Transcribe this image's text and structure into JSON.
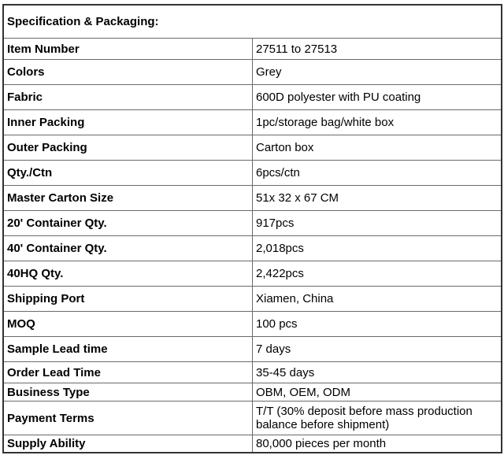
{
  "table": {
    "title": "Specification & Packaging:",
    "rows": [
      {
        "label": "Item Number",
        "value": "27511 to 27513"
      },
      {
        "label": "Colors",
        "value": "Grey"
      },
      {
        "label": "Fabric",
        "value": "600D polyester with PU coating"
      },
      {
        "label": "Inner Packing",
        "value": "1pc/storage bag/white box"
      },
      {
        "label": "Outer Packing",
        "value": "Carton box"
      },
      {
        "label": "Qty./Ctn",
        "value": "6pcs/ctn"
      },
      {
        "label": "Master Carton Size",
        "value": "51x 32 x 67 CM"
      },
      {
        "label": "20' Container Qty.",
        "value": "917pcs"
      },
      {
        "label": "40' Container Qty.",
        "value": "2,018pcs"
      },
      {
        "label": "40HQ Qty.",
        "value": "2,422pcs"
      },
      {
        "label": "Shipping Port",
        "value": "Xiamen, China"
      },
      {
        "label": "MOQ",
        "value": "100 pcs"
      },
      {
        "label": "Sample Lead time",
        "value": "7 days"
      },
      {
        "label": "Order Lead Time",
        "value": "35-45 days"
      },
      {
        "label": "Business Type",
        "value": "OBM, OEM, ODM"
      },
      {
        "label": "Payment Terms",
        "value": "T/T (30% deposit before mass production balance before shipment)"
      },
      {
        "label": "Supply Ability",
        "value": "80,000 pieces per month"
      }
    ]
  }
}
